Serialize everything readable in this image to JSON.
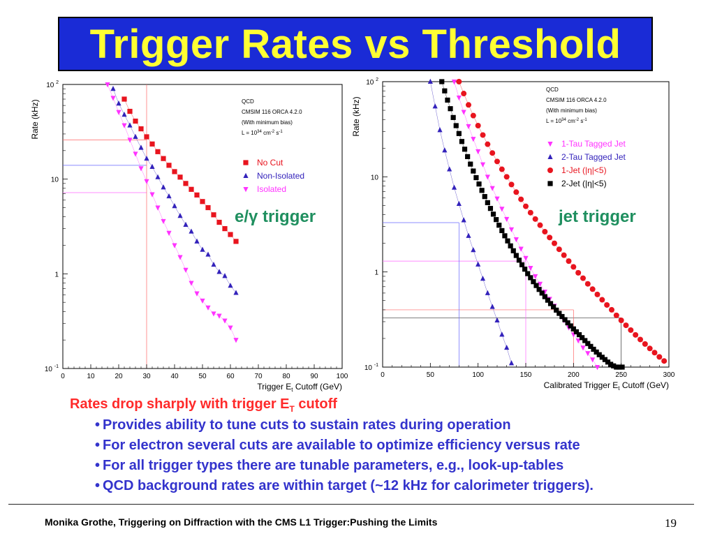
{
  "slide": {
    "title": "Trigger Rates vs Threshold",
    "headline": "Rates drop sharply with trigger E",
    "headline_sub": "T",
    "headline_tail": " cutoff",
    "bullets": [
      "Provides ability to tune cuts to sustain rates during operation",
      "For electron several cuts are available to optimize efficiency versus rate",
      "For all trigger types there are tunable parameters, e.g., look-up-tables",
      "QCD background rates are within target (~12 kHz  for calorimeter triggers)."
    ],
    "footer": "Monika Grothe, Triggering on Diffraction with the CMS L1 Trigger:Pushing the Limits",
    "page_number": "19",
    "colors": {
      "title_bg": "#1a2bd6",
      "title_fg": "#ffff33",
      "headline": "#ff2a2a",
      "bullet": "#3333cc",
      "chart_label": "#1f8f5f"
    }
  },
  "chart_data": [
    {
      "type": "scatter",
      "name": "egamma",
      "chart_label": "e/γ trigger",
      "ylabel": "Rate (kHz)",
      "xlabel_main": "Trigger E",
      "xlabel_sub": "t",
      "xlabel_tail": " Cutoff (GeV)",
      "xlim": [
        0,
        100
      ],
      "ylim": [
        0.1,
        100
      ],
      "yscale": "log",
      "xticks": [
        0,
        10,
        20,
        30,
        40,
        50,
        60,
        70,
        80,
        90,
        100
      ],
      "ytick_labels": [
        "10^-1",
        "1",
        "10",
        "10^2"
      ],
      "info_lines": [
        "QCD",
        "CMSIM 116 ORCA 4.2.0",
        "(With minimum bias)",
        "L = 10^34 cm^-2 s^-1"
      ],
      "reference_lines": {
        "x": 30,
        "y": [
          26,
          14,
          7.2
        ]
      },
      "series": [
        {
          "name": "No Cut",
          "marker": "square",
          "color": "#e8141e",
          "x": [
            22,
            24,
            26,
            28,
            30,
            32,
            34,
            36,
            38,
            40,
            42,
            44,
            46,
            48,
            50,
            52,
            54,
            56,
            58,
            60,
            62
          ],
          "y": [
            70,
            52,
            41,
            34,
            28,
            23.5,
            19.5,
            16.5,
            14,
            12,
            10.5,
            9,
            7.8,
            6.8,
            5.8,
            5.0,
            4.2,
            3.5,
            3.0,
            2.6,
            2.2
          ]
        },
        {
          "name": "Non-Isolated",
          "marker": "triangle-up",
          "color": "#3322bb",
          "x": [
            18,
            20,
            22,
            24,
            26,
            28,
            30,
            32,
            34,
            36,
            38,
            40,
            42,
            44,
            46,
            48,
            50,
            52,
            54,
            56,
            58,
            60,
            62
          ],
          "y": [
            90,
            63,
            48,
            37,
            28,
            21.5,
            16.5,
            13.5,
            10.5,
            8.2,
            6.6,
            5.2,
            4.1,
            3.3,
            2.8,
            2.2,
            1.8,
            1.6,
            1.25,
            1.05,
            0.95,
            0.75,
            0.63
          ]
        },
        {
          "name": "Isolated",
          "marker": "triangle-down",
          "color": "#ff33ff",
          "x": [
            16,
            18,
            20,
            22,
            24,
            26,
            28,
            30,
            32,
            34,
            36,
            38,
            40,
            42,
            44,
            46,
            48,
            50,
            52,
            54,
            56,
            58,
            60,
            62
          ],
          "y": [
            100,
            72,
            51,
            37,
            26,
            18.5,
            13,
            9.5,
            6.9,
            5.0,
            3.6,
            2.7,
            2.0,
            1.5,
            1.1,
            0.8,
            0.62,
            0.52,
            0.44,
            0.38,
            0.36,
            0.32,
            0.27,
            0.2
          ]
        }
      ]
    },
    {
      "type": "scatter",
      "name": "jet",
      "chart_label": "jet trigger",
      "ylabel": "Rate (kHz)",
      "xlabel_main": "Calibrated Trigger E",
      "xlabel_sub": "t",
      "xlabel_tail": " Cutoff (GeV)",
      "xlim": [
        0,
        300
      ],
      "ylim": [
        0.1,
        100
      ],
      "yscale": "log",
      "xticks": [
        0,
        50,
        100,
        150,
        200,
        250,
        300
      ],
      "ytick_labels": [
        "10^-1",
        "1",
        "10",
        "10^2"
      ],
      "info_lines": [
        "QCD",
        "CMSIM 116 ORCA 4.2.0",
        "(With minimum bias)",
        "L = 10^34 cm^-2 s^-1"
      ],
      "reference_lines": {
        "x": [
          80,
          150,
          200,
          250
        ],
        "y": [
          3.3,
          1.3,
          0.4,
          0.33
        ]
      },
      "series": [
        {
          "name": "1-Tau Tagged Jet",
          "marker": "triangle-down",
          "color": "#ff33ff",
          "x": [
            75,
            80,
            85,
            90,
            95,
            100,
            105,
            110,
            115,
            120,
            125,
            130,
            135,
            140,
            145,
            150,
            155,
            160,
            165,
            170,
            175,
            180,
            185,
            190,
            195,
            200,
            205,
            210,
            215,
            220,
            225
          ],
          "y": [
            100,
            68,
            48,
            34,
            25,
            18.5,
            13.5,
            10,
            7.6,
            5.9,
            4.6,
            3.6,
            2.8,
            2.2,
            1.75,
            1.4,
            1.1,
            0.9,
            0.75,
            0.62,
            0.52,
            0.44,
            0.37,
            0.31,
            0.26,
            0.22,
            0.19,
            0.16,
            0.14,
            0.12,
            0.1
          ]
        },
        {
          "name": "2-Tau Tagged Jet",
          "marker": "triangle-up",
          "color": "#3322bb",
          "x": [
            50,
            55,
            60,
            65,
            70,
            75,
            80,
            85,
            90,
            95,
            100,
            105,
            110,
            115,
            120,
            125,
            130,
            135
          ],
          "y": [
            100,
            55,
            31,
            19,
            12,
            7.7,
            5.2,
            3.5,
            2.4,
            1.7,
            1.2,
            0.85,
            0.6,
            0.43,
            0.31,
            0.22,
            0.16,
            0.11
          ]
        },
        {
          "name": "1-Jet (|η|<5)",
          "marker": "circle",
          "color": "#e8141e",
          "x": [
            80,
            85,
            90,
            95,
            100,
            105,
            110,
            115,
            120,
            125,
            130,
            135,
            140,
            145,
            150,
            155,
            160,
            165,
            170,
            175,
            180,
            185,
            190,
            195,
            200,
            205,
            210,
            215,
            220,
            225,
            230,
            235,
            240,
            245,
            250,
            255,
            260,
            265,
            270,
            275,
            280,
            285,
            290,
            295
          ],
          "y": [
            100,
            75,
            57,
            44,
            34.5,
            27.5,
            22,
            17.8,
            14.5,
            12,
            10,
            8.3,
            6.9,
            5.8,
            4.9,
            4.2,
            3.6,
            3.1,
            2.65,
            2.3,
            2.0,
            1.73,
            1.5,
            1.3,
            1.13,
            0.98,
            0.86,
            0.75,
            0.66,
            0.58,
            0.51,
            0.45,
            0.4,
            0.35,
            0.31,
            0.275,
            0.245,
            0.218,
            0.195,
            0.175,
            0.157,
            0.142,
            0.128,
            0.116
          ]
        },
        {
          "name": "2-Jet (|η|<5)",
          "marker": "square",
          "color": "#000000",
          "x": [
            62,
            65,
            68,
            71,
            74,
            77,
            80,
            83,
            86,
            89,
            92,
            95,
            98,
            101,
            104,
            107,
            110,
            113,
            116,
            119,
            122,
            125,
            128,
            131,
            134,
            137,
            140,
            143,
            146,
            149,
            152,
            155,
            158,
            161,
            164,
            167,
            170,
            173,
            176,
            179,
            182,
            185,
            188,
            191,
            194,
            197,
            200,
            203,
            206,
            209,
            212,
            215,
            218,
            221,
            224,
            227,
            230,
            233,
            236,
            239,
            242,
            245,
            248,
            251
          ],
          "y": [
            100,
            80,
            64,
            52,
            42,
            34.5,
            28.5,
            23.5,
            19.5,
            16.3,
            13.6,
            11.5,
            9.8,
            8.4,
            7.2,
            6.2,
            5.35,
            4.65,
            4.05,
            3.55,
            3.1,
            2.72,
            2.4,
            2.12,
            1.88,
            1.67,
            1.49,
            1.33,
            1.19,
            1.07,
            0.96,
            0.87,
            0.79,
            0.72,
            0.655,
            0.6,
            0.55,
            0.505,
            0.465,
            0.43,
            0.397,
            0.367,
            0.34,
            0.315,
            0.292,
            0.271,
            0.252,
            0.235,
            0.219,
            0.204,
            0.19,
            0.177,
            0.165,
            0.154,
            0.144,
            0.135,
            0.127,
            0.12,
            0.113,
            0.107,
            0.103,
            0.1,
            0.1,
            0.1
          ]
        }
      ]
    }
  ]
}
